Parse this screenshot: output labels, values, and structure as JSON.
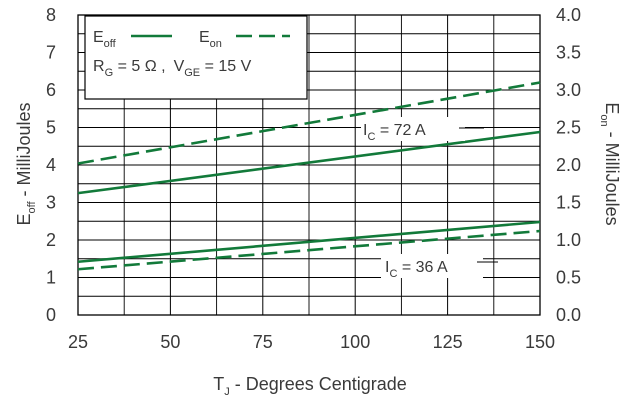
{
  "chart_data": {
    "type": "line",
    "xlabel": {
      "main": "T",
      "sub": "J",
      "rest": " - Degrees Centigrade"
    },
    "ylabel_left": {
      "main": "E",
      "sub": "off",
      "rest": " - MilliJoules"
    },
    "ylabel_right": {
      "main": "E",
      "sub": "on",
      "rest": " - MilliJoules"
    },
    "xlim": [
      25,
      150
    ],
    "ylim_left": [
      0,
      8
    ],
    "ylim_right": [
      0.0,
      4.0
    ],
    "x_ticks": [
      25,
      50,
      75,
      100,
      125,
      150
    ],
    "y_ticks_left": [
      0,
      1,
      2,
      3,
      4,
      5,
      6,
      7,
      8
    ],
    "y_ticks_right": [
      "0.0",
      "0.5",
      "1.0",
      "1.5",
      "2.0",
      "2.5",
      "3.0",
      "3.5",
      "4.0"
    ],
    "grid": true,
    "colors": {
      "line": "#127a3a",
      "grid": "#000000",
      "text": "#3a3a3a"
    },
    "legend": {
      "placement": "top-left",
      "entries": [
        {
          "main": "E",
          "sub": "off",
          "style": "solid"
        },
        {
          "main": "E",
          "sub": "on",
          "style": "dashed"
        }
      ],
      "conditions": {
        "rg_main": "R",
        "rg_sub": "G",
        "rg_val": " = 5 Ω ,",
        "vge_main": "V",
        "vge_sub": "GE",
        "vge_val": " = 15 V"
      }
    },
    "annotations": [
      {
        "main": "I",
        "sub": "C",
        "val": " = 72 A"
      },
      {
        "main": "I",
        "sub": "C",
        "val": " = 36 A"
      }
    ],
    "series": [
      {
        "group": "72A",
        "kind": "Eoff",
        "axis": "left",
        "style": "solid",
        "x": [
          25,
          150
        ],
        "y": [
          3.25,
          4.88
        ]
      },
      {
        "group": "72A",
        "kind": "Eon",
        "axis": "right",
        "style": "dashed",
        "x": [
          25,
          150
        ],
        "y": [
          2.02,
          3.1
        ]
      },
      {
        "group": "36A",
        "kind": "Eoff",
        "axis": "left",
        "style": "solid",
        "x": [
          25,
          150
        ],
        "y": [
          1.42,
          2.48
        ]
      },
      {
        "group": "36A",
        "kind": "Eon",
        "axis": "right",
        "style": "dashed",
        "x": [
          25,
          150
        ],
        "y": [
          0.61,
          1.12
        ]
      }
    ]
  }
}
